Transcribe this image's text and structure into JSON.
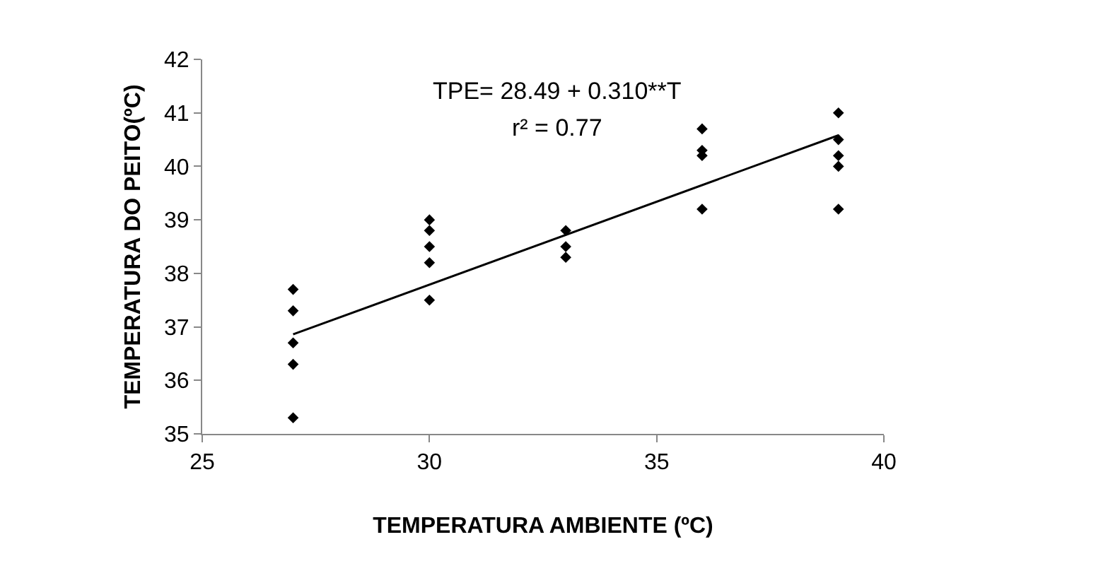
{
  "chart_data": {
    "type": "scatter",
    "xlabel": "TEMPERATURA AMBIENTE (ºC)",
    "ylabel": "TEMPERATURA DO PEITO(ºC)",
    "xlim": [
      25,
      40
    ],
    "xticks": [
      25,
      30,
      35,
      40
    ],
    "ylim": [
      35,
      42
    ],
    "yticks": [
      35,
      36,
      37,
      38,
      39,
      40,
      41,
      42
    ],
    "grid": false,
    "marker": "diamond",
    "annotations": [
      "TPE= 28.49 + 0.310**T",
      "r² = 0.77"
    ],
    "series": [
      {
        "color": "#000000",
        "x": [
          27,
          27,
          27,
          27,
          27,
          30,
          30,
          30,
          30,
          30,
          33,
          33,
          33,
          36,
          36,
          36,
          36,
          39,
          39,
          39,
          39,
          39
        ],
        "values": [
          37.7,
          37.3,
          36.7,
          36.3,
          35.3,
          39.0,
          38.8,
          38.5,
          38.2,
          37.5,
          38.8,
          38.5,
          38.3,
          40.7,
          40.3,
          40.2,
          39.2,
          41.0,
          40.5,
          40.2,
          40.0,
          39.2
        ]
      },
      {
        "type": "line",
        "color": "#000000",
        "marker": "none",
        "line_style": "solid",
        "x": [
          27,
          39
        ],
        "values": [
          36.86,
          40.58
        ]
      }
    ]
  }
}
